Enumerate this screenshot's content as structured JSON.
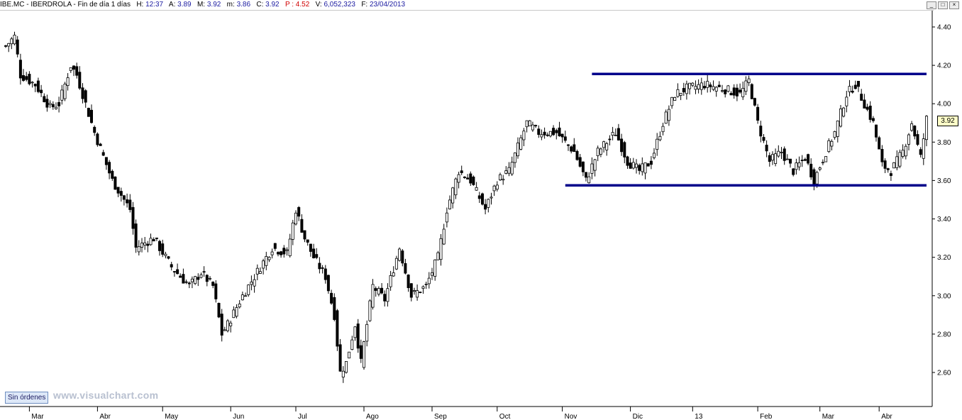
{
  "header": {
    "symbol": "IBE.MC - IBERDROLA - Fin de día 1 días",
    "h_label": "H:",
    "h_value": "12:37",
    "a_label": "A:",
    "a_value": "3.89",
    "m_label": "M:",
    "m_value": "3.92",
    "mn_label": "m:",
    "mn_value": "3.86",
    "c_label": "C:",
    "c_value": "3.92",
    "p_label": "P :",
    "p_value": "4.52",
    "v_label": "V:",
    "v_value": "6,052,323",
    "f_label": "F:",
    "f_value": "23/04/2013"
  },
  "window_buttons": [
    "_",
    "□",
    "×"
  ],
  "orders_badge": "Sin órdenes",
  "watermark": "www.visualchart.com",
  "last_price_label": "3.92",
  "colors": {
    "axis": "#000000",
    "trendline": "#00008b",
    "candle": "#000000",
    "accent": "#1a1aa0"
  },
  "chart_data": {
    "type": "candlestick",
    "ylim": [
      2.5,
      4.45
    ],
    "yticks": [
      2.6,
      2.8,
      3.0,
      3.2,
      3.4,
      3.6,
      3.8,
      4.0,
      4.2,
      4.4
    ],
    "ytick_labels": [
      "2.60",
      "2.80",
      "3.00",
      "3.20",
      "3.40",
      "3.60",
      "3.80",
      "4.00",
      "4.20",
      "4.40"
    ],
    "months": [
      "Mar",
      "Abr",
      "May",
      "Jun",
      "Jul",
      "Ago",
      "Sep",
      "Oct",
      "Nov",
      "Dic",
      "13",
      "Feb",
      "Mar",
      "Abr"
    ],
    "month_start_bar": [
      8,
      31,
      53,
      76,
      98,
      121,
      144,
      166,
      188,
      211,
      232,
      254,
      275,
      295
    ],
    "bars": 312,
    "anchors": [
      [
        0,
        4.3
      ],
      [
        3,
        4.35
      ],
      [
        5,
        4.15
      ],
      [
        10,
        4.1
      ],
      [
        15,
        3.98
      ],
      [
        18,
        4.0
      ],
      [
        22,
        4.2
      ],
      [
        24,
        4.15
      ],
      [
        30,
        3.85
      ],
      [
        36,
        3.6
      ],
      [
        42,
        3.45
      ],
      [
        44,
        3.25
      ],
      [
        50,
        3.3
      ],
      [
        56,
        3.15
      ],
      [
        62,
        3.05
      ],
      [
        66,
        3.12
      ],
      [
        70,
        3.05
      ],
      [
        73,
        2.8
      ],
      [
        75,
        2.85
      ],
      [
        80,
        3.0
      ],
      [
        84,
        3.1
      ],
      [
        90,
        3.25
      ],
      [
        95,
        3.22
      ],
      [
        98,
        3.45
      ],
      [
        101,
        3.3
      ],
      [
        104,
        3.2
      ],
      [
        108,
        3.1
      ],
      [
        111,
        2.9
      ],
      [
        113,
        2.6
      ],
      [
        115,
        2.65
      ],
      [
        118,
        2.85
      ],
      [
        120,
        2.65
      ],
      [
        124,
        3.05
      ],
      [
        128,
        2.98
      ],
      [
        133,
        3.25
      ],
      [
        137,
        3.0
      ],
      [
        142,
        3.05
      ],
      [
        146,
        3.2
      ],
      [
        149,
        3.45
      ],
      [
        153,
        3.65
      ],
      [
        157,
        3.6
      ],
      [
        162,
        3.45
      ],
      [
        166,
        3.6
      ],
      [
        170,
        3.65
      ],
      [
        176,
        3.9
      ],
      [
        180,
        3.85
      ],
      [
        186,
        3.85
      ],
      [
        192,
        3.75
      ],
      [
        196,
        3.6
      ],
      [
        200,
        3.75
      ],
      [
        206,
        3.85
      ],
      [
        210,
        3.7
      ],
      [
        214,
        3.65
      ],
      [
        218,
        3.7
      ],
      [
        222,
        3.9
      ],
      [
        226,
        4.05
      ],
      [
        230,
        4.08
      ],
      [
        236,
        4.1
      ],
      [
        242,
        4.08
      ],
      [
        248,
        4.05
      ],
      [
        251,
        4.12
      ],
      [
        254,
        3.9
      ],
      [
        258,
        3.7
      ],
      [
        262,
        3.75
      ],
      [
        266,
        3.65
      ],
      [
        270,
        3.72
      ],
      [
        273,
        3.6
      ],
      [
        277,
        3.75
      ],
      [
        280,
        3.85
      ],
      [
        284,
        4.05
      ],
      [
        287,
        4.1
      ],
      [
        290,
        4.0
      ],
      [
        293,
        3.9
      ],
      [
        296,
        3.68
      ],
      [
        299,
        3.65
      ],
      [
        303,
        3.75
      ],
      [
        306,
        3.9
      ],
      [
        309,
        3.72
      ],
      [
        311,
        3.92
      ]
    ],
    "trendlines": [
      {
        "from_bar": 198,
        "to_bar": 311,
        "value": 4.155
      },
      {
        "from_bar": 189,
        "to_bar": 311,
        "value": 3.575
      }
    ]
  }
}
